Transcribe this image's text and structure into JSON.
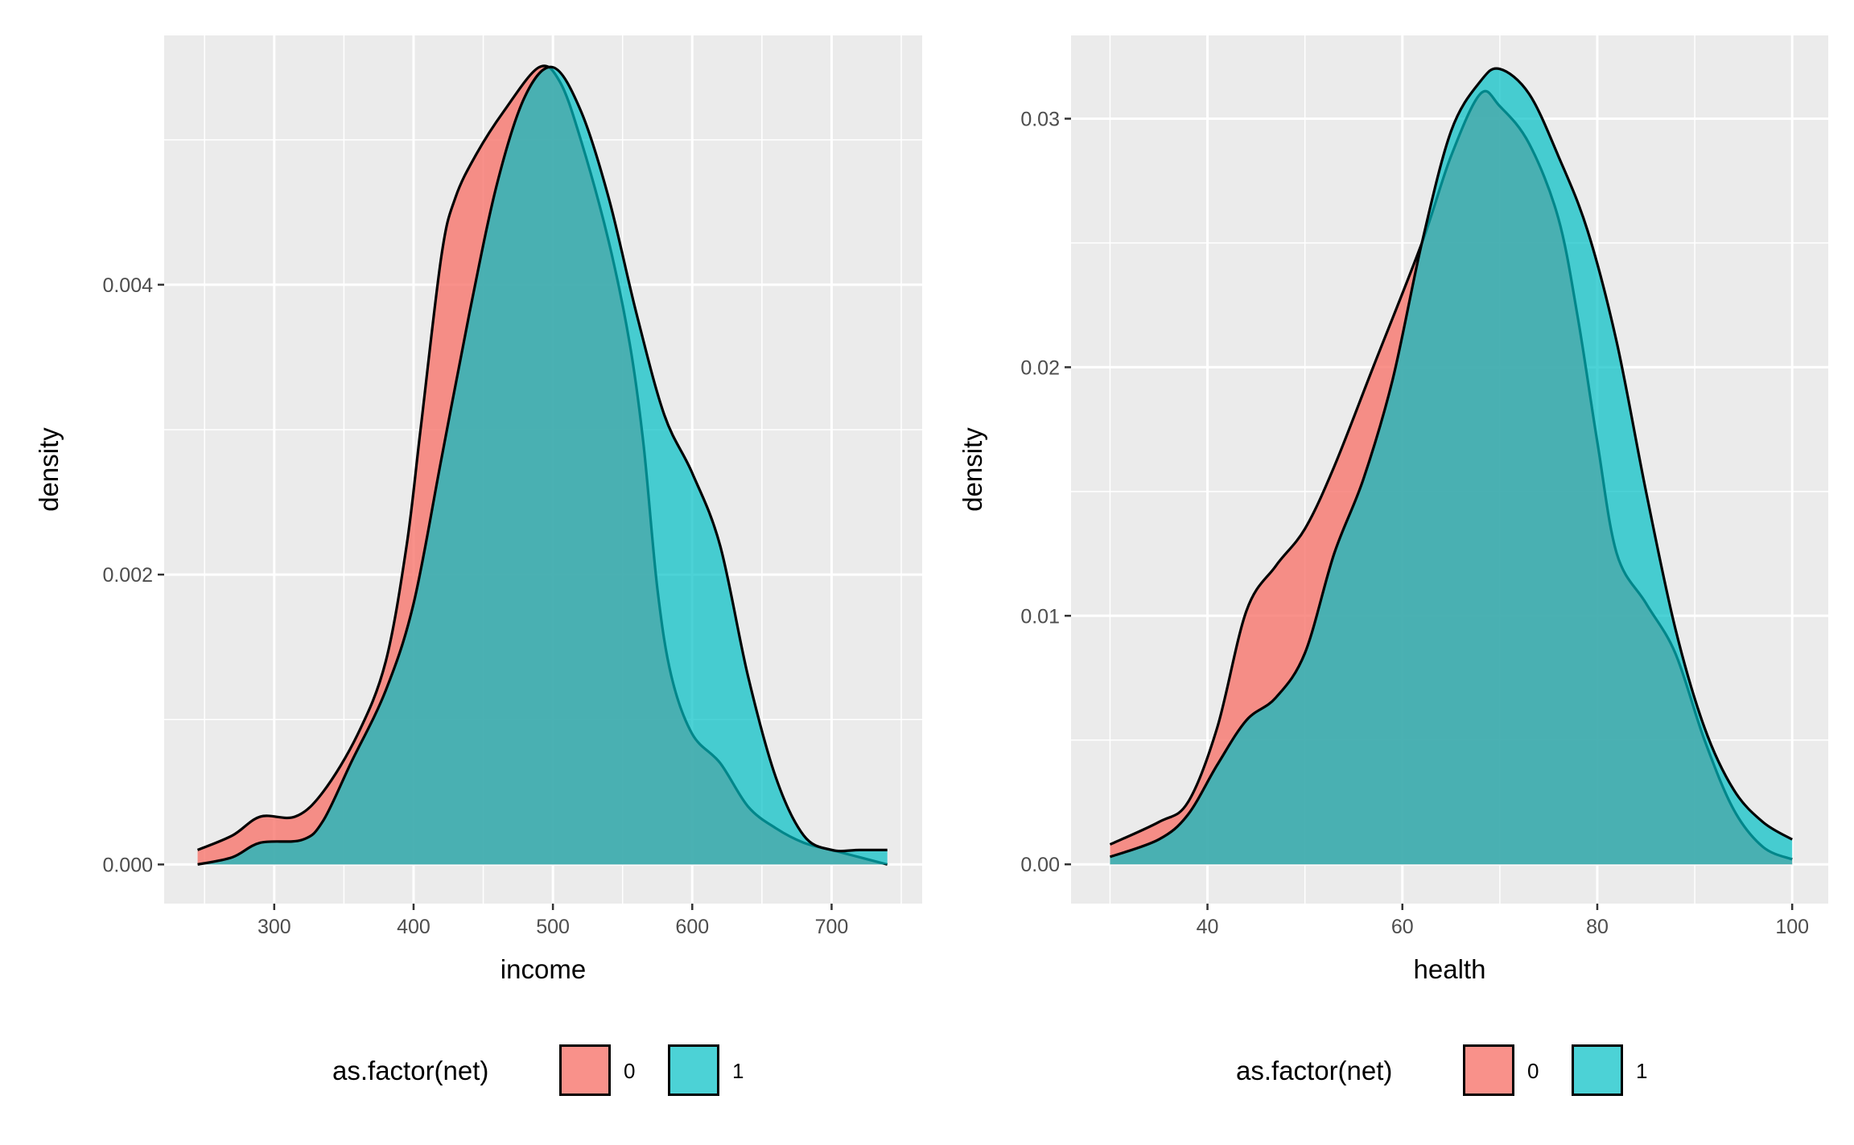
{
  "colors": {
    "group0": "#F8766D",
    "group1": "#00BFC4",
    "panel": "#EBEBEB",
    "grid": "#FFFFFF"
  },
  "chart_data": [
    {
      "type": "area",
      "title": "",
      "xlabel": "income",
      "ylabel": "density",
      "xlim": [
        221,
        765
      ],
      "ylim": [
        -0.00027,
        0.00572
      ],
      "xticks": [
        300,
        400,
        500,
        600,
        700
      ],
      "xtick_labels": [
        "300",
        "400",
        "500",
        "600",
        "700"
      ],
      "xminor": [
        250,
        350,
        450,
        550,
        650,
        750
      ],
      "yticks": [
        0,
        0.002,
        0.004
      ],
      "ytick_labels": [
        "0.000",
        "0.002",
        "0.004"
      ],
      "yminor": [
        0.001,
        0.003,
        0.005
      ],
      "grid": true,
      "legend": {
        "title": "as.factor(net)",
        "placement": "bottom",
        "entries": [
          "0",
          "1"
        ]
      },
      "series": [
        {
          "name": "0",
          "x": [
            245,
            270,
            290,
            315,
            335,
            360,
            380,
            395,
            405,
            420,
            430,
            445,
            465,
            490,
            505,
            520,
            540,
            555,
            565,
            575,
            585,
            600,
            620,
            640,
            660,
            680,
            700,
            720,
            740
          ],
          "y": [
            0.0001,
            0.0002,
            0.00033,
            0.00033,
            0.0005,
            0.0009,
            0.0014,
            0.0022,
            0.003,
            0.0042,
            0.0046,
            0.0049,
            0.0052,
            0.0055,
            0.0054,
            0.005,
            0.0043,
            0.0036,
            0.0029,
            0.0019,
            0.0013,
            0.0009,
            0.0007,
            0.0004,
            0.00025,
            0.00015,
            0.0001,
            5e-05,
            0.0
          ]
        },
        {
          "name": "1",
          "x": [
            245,
            270,
            290,
            320,
            335,
            355,
            380,
            400,
            420,
            440,
            460,
            480,
            500,
            520,
            540,
            560,
            580,
            600,
            620,
            640,
            660,
            680,
            700,
            720,
            740
          ],
          "y": [
            0.0,
            5e-05,
            0.00015,
            0.00017,
            0.0003,
            0.0007,
            0.0012,
            0.0018,
            0.0028,
            0.0038,
            0.0047,
            0.0053,
            0.0055,
            0.0052,
            0.0046,
            0.0038,
            0.0031,
            0.0027,
            0.0022,
            0.0013,
            0.0006,
            0.0002,
            0.0001,
            0.0001,
            0.0001
          ]
        }
      ]
    },
    {
      "type": "area",
      "title": "",
      "xlabel": "health",
      "ylabel": "density",
      "xlim": [
        26,
        103.7
      ],
      "ylim": [
        -0.00158,
        0.03335
      ],
      "xticks": [
        40,
        60,
        80,
        100
      ],
      "xtick_labels": [
        "40",
        "60",
        "80",
        "100"
      ],
      "xminor": [
        30,
        50,
        70,
        90
      ],
      "yticks": [
        0,
        0.01,
        0.02,
        0.03
      ],
      "ytick_labels": [
        "0.00",
        "0.01",
        "0.02",
        "0.03"
      ],
      "yminor": [
        0.005,
        0.015,
        0.025
      ],
      "grid": true,
      "legend": {
        "title": "as.factor(net)",
        "placement": "bottom",
        "entries": [
          "0",
          "1"
        ]
      },
      "series": [
        {
          "name": "0",
          "x": [
            30,
            35,
            38,
            41,
            44,
            47,
            50,
            53,
            57,
            62,
            65,
            68,
            70,
            73,
            76,
            78,
            80,
            82,
            85,
            88,
            91,
            94,
            97,
            100
          ],
          "y": [
            0.0008,
            0.0017,
            0.0025,
            0.0055,
            0.0102,
            0.012,
            0.0135,
            0.016,
            0.02,
            0.025,
            0.0285,
            0.031,
            0.0305,
            0.029,
            0.026,
            0.022,
            0.017,
            0.0125,
            0.0105,
            0.0085,
            0.005,
            0.0022,
            0.0007,
            0.0002
          ]
        },
        {
          "name": "1",
          "x": [
            30,
            35,
            38,
            41,
            44,
            47,
            50,
            53,
            56,
            59,
            62,
            65,
            68,
            70,
            73,
            76,
            79,
            82,
            85,
            88,
            91,
            94,
            97,
            100
          ],
          "y": [
            0.0003,
            0.001,
            0.002,
            0.004,
            0.0058,
            0.0067,
            0.0085,
            0.0125,
            0.0155,
            0.0195,
            0.025,
            0.0295,
            0.0315,
            0.032,
            0.031,
            0.0285,
            0.0255,
            0.021,
            0.015,
            0.0095,
            0.0055,
            0.003,
            0.0017,
            0.001
          ]
        }
      ]
    }
  ]
}
